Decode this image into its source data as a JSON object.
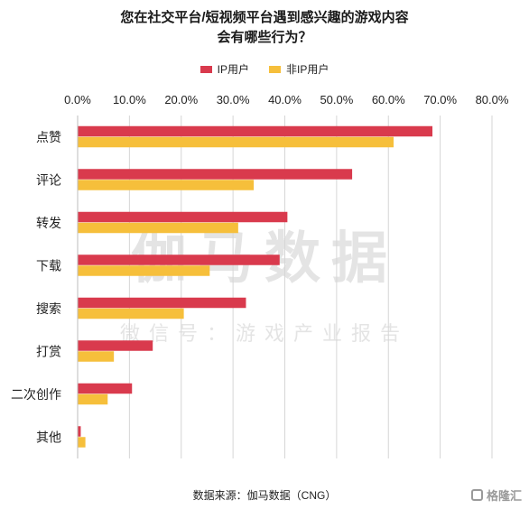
{
  "title_line1": "您在社交平台/短视频平台遇到感兴趣的游戏内容",
  "title_line2": "会有哪些行为？",
  "source": "数据来源：伽马数据（CNG）",
  "watermark_main": "伽马数据",
  "watermark_sub": "微信号：游戏产业报告",
  "brand": "格隆汇",
  "colors": {
    "ip": "#d93a4d",
    "nonip": "#f6bf3b",
    "grid": "#d6d6d6"
  },
  "chart_data": {
    "type": "bar",
    "orientation": "horizontal",
    "title": "您在社交平台/短视频平台遇到感兴趣的游戏内容会有哪些行为？",
    "categories": [
      "点赞",
      "评论",
      "转发",
      "下载",
      "搜索",
      "打赏",
      "二次创作",
      "其他"
    ],
    "series": [
      {
        "name": "IP用户",
        "values": [
          68.5,
          53.0,
          40.5,
          39.0,
          32.5,
          14.5,
          10.5,
          0.6
        ]
      },
      {
        "name": "非IP用户",
        "values": [
          61.0,
          34.0,
          31.0,
          25.5,
          20.5,
          7.0,
          5.8,
          1.5
        ]
      }
    ],
    "xlim": [
      0,
      80
    ],
    "xticks": [
      "0.0%",
      "10.0%",
      "20.0%",
      "30.0%",
      "40.0%",
      "50.0%",
      "60.0%",
      "70.0%",
      "80.0%"
    ],
    "grid": true,
    "legend": "top"
  }
}
